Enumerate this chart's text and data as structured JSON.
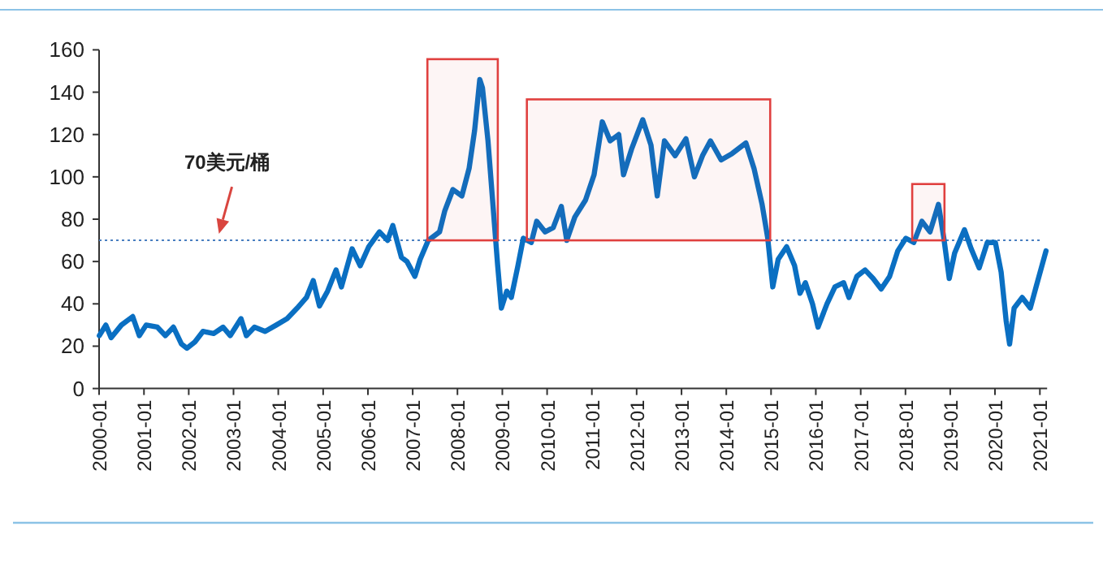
{
  "chart_data": {
    "type": "line",
    "x": [
      "2000-01-03",
      "2000-02-25",
      "2000-04-08",
      "2000-07-01",
      "2000-10-01",
      "2000-11-24",
      "2001-01-19",
      "2001-04-20",
      "2001-06-25",
      "2001-08-29",
      "2001-11-03",
      "2001-12-17",
      "2002-02-20",
      "2002-04-27",
      "2002-07-23",
      "2002-10-08",
      "2002-12-05",
      "2003-03-03",
      "2003-04-16",
      "2003-06-21",
      "2003-09-16",
      "2003-12-16",
      "2004-03-13",
      "2004-06-03",
      "2004-08-18",
      "2004-10-12",
      "2004-12-02",
      "2005-02-06",
      "2005-04-16",
      "2005-05-30",
      "2005-08-25",
      "2005-10-30",
      "2006-01-08",
      "2006-04-05",
      "2006-06-10",
      "2006-07-23",
      "2006-10-01",
      "2006-11-15",
      "2007-01-19",
      "2007-03-03",
      "2007-05-08",
      "2007-08-08",
      "2007-09-20",
      "2007-11-25",
      "2008-02-06",
      "2008-04-05",
      "2008-05-20",
      "2008-07-01",
      "2008-07-23",
      "2008-09-06",
      "2008-10-20",
      "2008-11-24",
      "2008-12-24",
      "2009-02-06",
      "2009-03-15",
      "2009-05-08",
      "2009-06-21",
      "2009-08-25",
      "2009-10-08",
      "2009-12-16",
      "2010-02-20",
      "2010-04-27",
      "2010-06-10",
      "2010-08-15",
      "2010-11-10",
      "2011-01-19",
      "2011-03-27",
      "2011-05-30",
      "2011-08-08",
      "2011-09-16",
      "2011-11-20",
      "2012-02-20",
      "2012-04-27",
      "2012-06-17",
      "2012-08-15",
      "2012-11-10",
      "2013-02-06",
      "2013-04-16",
      "2013-06-21",
      "2013-08-25",
      "2013-11-20",
      "2014-02-17",
      "2014-06-10",
      "2014-08-15",
      "2014-10-20",
      "2014-12-05",
      "2015-01-15",
      "2015-02-28",
      "2015-05-08",
      "2015-07-12",
      "2015-08-25",
      "2015-10-08",
      "2015-12-05",
      "2016-01-19",
      "2016-04-01",
      "2016-06-05",
      "2016-08-15",
      "2016-09-27",
      "2016-12-01",
      "2017-02-06",
      "2017-04-12",
      "2017-06-17",
      "2017-08-25",
      "2017-10-30",
      "2018-01-04",
      "2018-03-10",
      "2018-05-15",
      "2018-07-20",
      "2018-09-27",
      "2018-11-10",
      "2018-12-24",
      "2019-02-06",
      "2019-04-27",
      "2019-06-21",
      "2019-08-25",
      "2019-10-30",
      "2020-01-04",
      "2020-02-20",
      "2020-04-01",
      "2020-04-29",
      "2020-06-05",
      "2020-08-10",
      "2020-10-15",
      "2020-12-01",
      "2021-02-20"
    ],
    "series": [
      {
        "color": "#0a6fc2",
        "line_style": "solid",
        "values": [
          25,
          30,
          24,
          30,
          34,
          25,
          30,
          29,
          25,
          29,
          21,
          19,
          22,
          27,
          26,
          29,
          25,
          33,
          25,
          29,
          27,
          30,
          33,
          38,
          43,
          51,
          39,
          46,
          56,
          48,
          66,
          58,
          67,
          74,
          70,
          77,
          62,
          60,
          53,
          61,
          70,
          74,
          84,
          94,
          91,
          104,
          122,
          146,
          142,
          117,
          84,
          58,
          38,
          46,
          43,
          58,
          71,
          69,
          79,
          74,
          76,
          86,
          70,
          81,
          89,
          101,
          126,
          117,
          120,
          101,
          113,
          127,
          115,
          91,
          117,
          110,
          118,
          100,
          110,
          117,
          108,
          111,
          116,
          104,
          87,
          71,
          48,
          61,
          67,
          58,
          45,
          50,
          40,
          29,
          40,
          48,
          50,
          43,
          53,
          56,
          52,
          47,
          53,
          65,
          71,
          69,
          79,
          74,
          87,
          71,
          52,
          64,
          75,
          66,
          57,
          69,
          69,
          55,
          32,
          21,
          38,
          43,
          38,
          48,
          65
        ]
      }
    ],
    "xlim": [
      "2000-01-01",
      "2021-03-01"
    ],
    "xticks": [
      "2000-01",
      "2001-01",
      "2002-01",
      "2003-01",
      "2004-01",
      "2005-01",
      "2006-01",
      "2007-01",
      "2008-01",
      "2009-01",
      "2010-01",
      "2011-01",
      "2012-01",
      "2013-01",
      "2014-01",
      "2015-01",
      "2016-01",
      "2017-01",
      "2018-01",
      "2019-01",
      "2020-01",
      "2021-01"
    ],
    "ylim": [
      0,
      160
    ],
    "yticks": [
      0,
      20,
      40,
      60,
      80,
      100,
      120,
      140,
      160
    ],
    "ref_lines": [
      {
        "axis": "y",
        "value": 70,
        "color": "#4a7fc0",
        "line_style": "dotted"
      }
    ],
    "annotations": [
      "70美元/桶"
    ],
    "bands": [
      {
        "axis": "x",
        "from": "2007-05-01",
        "to": "2008-11-25",
        "color": "#e0403f"
      },
      {
        "axis": "x",
        "from": "2009-07-20",
        "to": "2014-12-25",
        "color": "#e0403f"
      },
      {
        "axis": "x",
        "from": "2018-02-25",
        "to": "2018-11-15",
        "color": "#e0403f"
      }
    ]
  }
}
